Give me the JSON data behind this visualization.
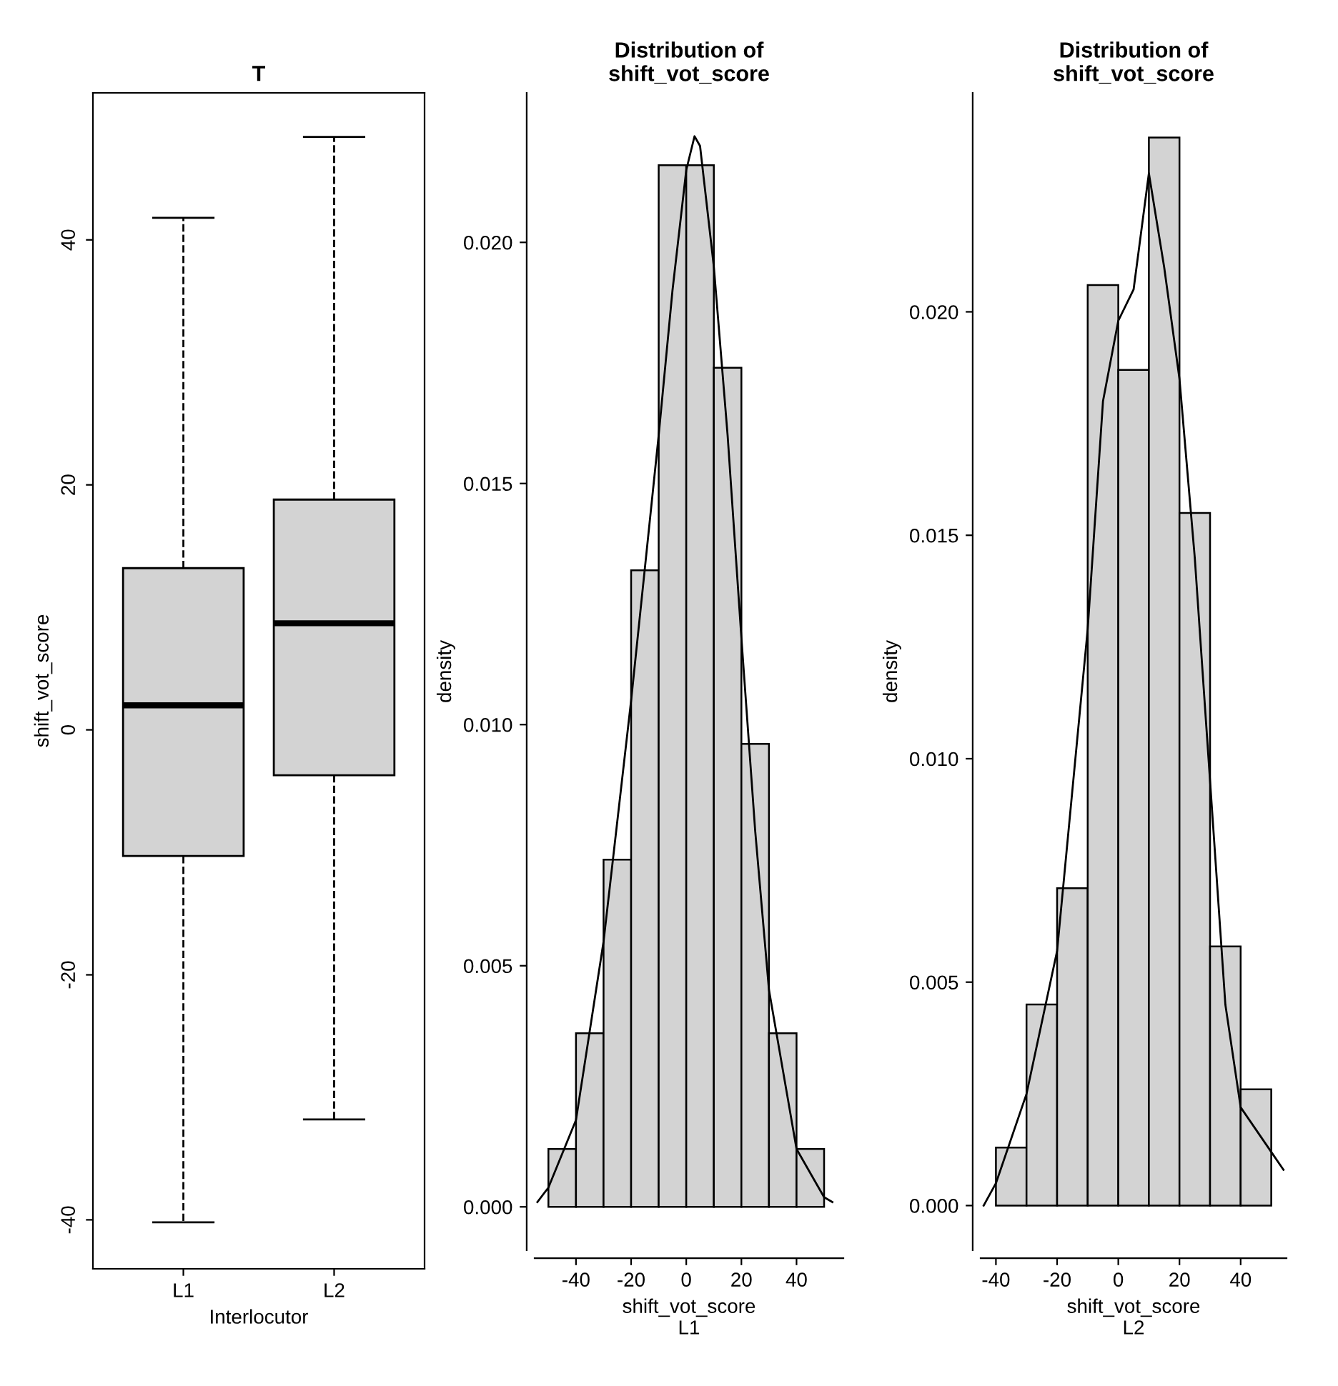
{
  "chart_data": [
    {
      "type": "box",
      "title": "T",
      "xlabel": "Interlocutor",
      "ylabel": "shift_vot_score",
      "categories": [
        "L1",
        "L2"
      ],
      "color": "#d3d3d3",
      "boxes": [
        {
          "low": -40.2,
          "q1": -10.3,
          "median": 2.0,
          "q3": 13.2,
          "high": 41.8
        },
        {
          "low": -31.8,
          "q1": -3.7,
          "median": 8.7,
          "q3": 18.8,
          "high": 48.4
        }
      ],
      "ylim": [
        -44,
        52
      ],
      "yticks": [
        -40,
        -20,
        0,
        20,
        40
      ],
      "grid": false,
      "legend": false
    },
    {
      "type": "histogram",
      "title": "Distribution of\nshift_vot_score",
      "xlabel": "shift_vot_score\nL1",
      "ylabel": "density",
      "color": "#d3d3d3",
      "bins": [
        -50,
        -40,
        -30,
        -20,
        -10,
        0,
        10,
        20,
        30,
        40,
        50
      ],
      "values": [
        0.0012,
        0.0036,
        0.0072,
        0.0132,
        0.0216,
        0.0216,
        0.0174,
        0.0096,
        0.0036,
        0.0012
      ],
      "series": [
        {
          "type": "line",
          "color": "#000000",
          "x": [
            -54,
            -50,
            -40,
            -30,
            -20,
            -10,
            -5,
            0,
            3,
            5,
            10,
            15,
            20,
            25,
            30,
            40,
            50,
            53
          ],
          "values": [
            0.0001,
            0.0004,
            0.0018,
            0.0055,
            0.0105,
            0.016,
            0.019,
            0.0215,
            0.0222,
            0.022,
            0.0195,
            0.016,
            0.0118,
            0.0078,
            0.0045,
            0.0012,
            0.0002,
            0.0001
          ]
        }
      ],
      "xlim": [
        -55,
        57
      ],
      "xticks": [
        -40,
        -20,
        0,
        20,
        40
      ],
      "ylim": [
        -0.0009,
        0.0231
      ],
      "yticks": [
        {
          "value": 0,
          "label": "0.000"
        },
        {
          "value": 0.005,
          "label": "0.005"
        },
        {
          "value": 0.01,
          "label": "0.010"
        },
        {
          "value": 0.015,
          "label": "0.015"
        },
        {
          "value": 0.02,
          "label": "0.020"
        }
      ],
      "grid": false,
      "legend": false
    },
    {
      "type": "histogram",
      "title": "Distribution of\nshift_vot_score",
      "xlabel": "shift_vot_score\nL2",
      "ylabel": "density",
      "color": "#d3d3d3",
      "bins": [
        -40,
        -30,
        -20,
        -10,
        0,
        10,
        20,
        30,
        40,
        50
      ],
      "values": [
        0.0013,
        0.0045,
        0.0071,
        0.0206,
        0.0187,
        0.0239,
        0.0155,
        0.0058,
        0.0026
      ],
      "series": [
        {
          "type": "line",
          "color": "#000000",
          "x": [
            -44,
            -40,
            -30,
            -20,
            -10,
            -5,
            0,
            5,
            10,
            15,
            20,
            25,
            30,
            35,
            40,
            45,
            50,
            54
          ],
          "values": [
            0.0,
            0.0005,
            0.0025,
            0.0057,
            0.0129,
            0.018,
            0.0198,
            0.0205,
            0.0231,
            0.021,
            0.0185,
            0.0145,
            0.0095,
            0.0045,
            0.0022,
            0.0017,
            0.0012,
            0.0008
          ]
        }
      ],
      "xlim": [
        -45,
        55
      ],
      "xticks": [
        -40,
        -20,
        0,
        20,
        40
      ],
      "ylim": [
        -0.001,
        0.0249
      ],
      "yticks": [
        {
          "value": 0,
          "label": "0.000"
        },
        {
          "value": 0.005,
          "label": "0.005"
        },
        {
          "value": 0.01,
          "label": "0.010"
        },
        {
          "value": 0.015,
          "label": "0.015"
        },
        {
          "value": 0.02,
          "label": "0.020"
        }
      ],
      "grid": false,
      "legend": false
    }
  ]
}
